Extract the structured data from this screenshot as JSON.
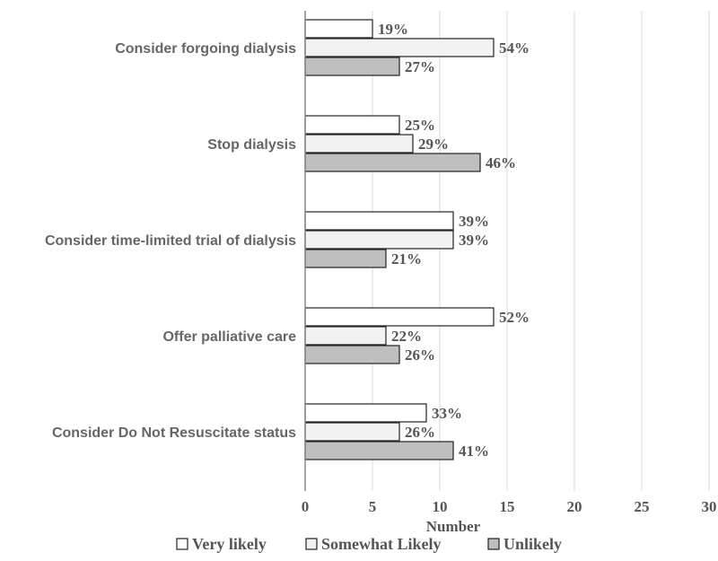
{
  "chart_data": {
    "type": "bar",
    "orientation": "horizontal",
    "title": "",
    "xlabel": "Number",
    "ylabel": "",
    "xlim": [
      0,
      30
    ],
    "xticks": [
      0,
      5,
      10,
      15,
      20,
      25,
      30
    ],
    "grid": "vertical",
    "legend_position": "bottom",
    "categories": [
      "Consider forgoing dialysis",
      "Stop dialysis",
      "Consider time-limited trial of dialysis",
      "Offer palliative care",
      "Consider Do Not Resuscitate status"
    ],
    "series": [
      {
        "name": "Very likely",
        "color": "#ffffff",
        "values": [
          5,
          7,
          11,
          14,
          9
        ],
        "labels": [
          "19%",
          "25%",
          "39%",
          "52%",
          "33%"
        ]
      },
      {
        "name": "Somewhat Likely",
        "color": "#f2f2f2",
        "values": [
          14,
          8,
          11,
          6,
          7
        ],
        "labels": [
          "54%",
          "29%",
          "39%",
          "22%",
          "26%"
        ]
      },
      {
        "name": "Unlikely",
        "color": "#bfbfbf",
        "values": [
          7,
          13,
          6,
          7,
          11
        ],
        "labels": [
          "27%",
          "46%",
          "21%",
          "26%",
          "41%"
        ]
      }
    ]
  }
}
